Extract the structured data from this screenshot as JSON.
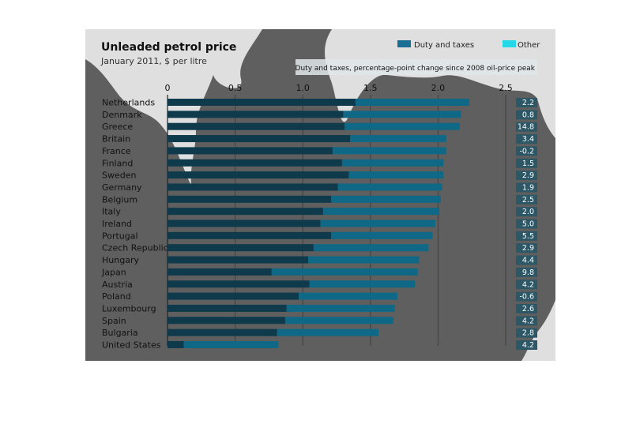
{
  "chart_data": {
    "type": "bar",
    "orientation": "horizontal",
    "stacked": true,
    "title": "Unleaded petrol price",
    "subtitle": "January 2011, $ per litre",
    "annotation_header": "Duty and taxes, percentage-point change since 2008 oil-price peak",
    "xlim": [
      0,
      2.5
    ],
    "x_ticks": [
      "0",
      "0.5",
      "1.0",
      "1.5",
      "2.0",
      "2.5"
    ],
    "legend_position": "top-right",
    "categories": [
      "Netherlands",
      "Denmark",
      "Greece",
      "Britain",
      "France",
      "Finland",
      "Sweden",
      "Germany",
      "Belgium",
      "Italy",
      "Ireland",
      "Portugal",
      "Czech Republic",
      "Hungary",
      "Japan",
      "Austria",
      "Poland",
      "Luxembourg",
      "Spain",
      "Bulgaria",
      "United States"
    ],
    "series": [
      {
        "name": "Duty and taxes",
        "values": [
          1.39,
          1.3,
          1.31,
          1.35,
          1.22,
          1.29,
          1.34,
          1.26,
          1.21,
          1.15,
          1.13,
          1.21,
          1.08,
          1.04,
          0.77,
          1.05,
          0.97,
          0.88,
          0.87,
          0.81,
          0.12
        ]
      },
      {
        "name": "Other",
        "values": [
          0.84,
          0.87,
          0.85,
          0.71,
          0.84,
          0.75,
          0.7,
          0.77,
          0.81,
          0.86,
          0.85,
          0.75,
          0.85,
          0.82,
          1.08,
          0.78,
          0.73,
          0.8,
          0.8,
          0.75,
          0.7
        ]
      }
    ],
    "changes": [
      "2.2",
      "0.8",
      "14.8",
      "3.4",
      "-0.2",
      "1.5",
      "2.9",
      "1.9",
      "2.5",
      "2.0",
      "5.0",
      "5.5",
      "2.9",
      "4.4",
      "9.8",
      "4.2",
      "-0.6",
      "2.6",
      "4.2",
      "2.8",
      "4.2"
    ]
  },
  "colors": {
    "background": "#ffffff",
    "plot_background": "#5f5f5f",
    "swirl": "#e6e6e6",
    "duty": "#0e3a4c",
    "other": "#0e6886",
    "legend_duty": "#1a6e93",
    "legend_other": "#24d8e8",
    "gridline": "#3f3f3f",
    "change_box": "#2c5766",
    "header_box": "#e0e8ea"
  }
}
